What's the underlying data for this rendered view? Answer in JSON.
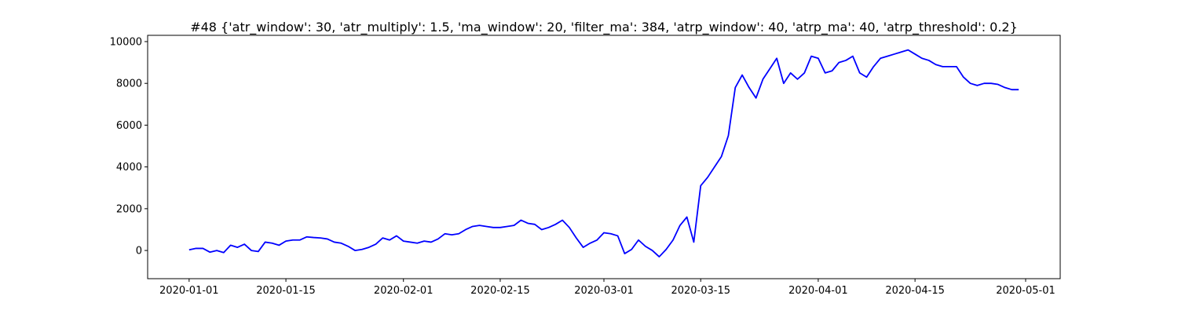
{
  "chart_data": {
    "type": "line",
    "title": "#48 {'atr_window': 30, 'atr_multiply': 1.5, 'ma_window': 20, 'filter_ma': 384, 'atrp_window': 40, 'atrp_ma': 40, 'atrp_threshold': 0.2}",
    "x": [
      "2020-01-01",
      "2020-01-02",
      "2020-01-03",
      "2020-01-04",
      "2020-01-05",
      "2020-01-06",
      "2020-01-07",
      "2020-01-08",
      "2020-01-09",
      "2020-01-10",
      "2020-01-11",
      "2020-01-12",
      "2020-01-13",
      "2020-01-14",
      "2020-01-15",
      "2020-01-16",
      "2020-01-17",
      "2020-01-18",
      "2020-01-19",
      "2020-01-20",
      "2020-01-21",
      "2020-01-22",
      "2020-01-23",
      "2020-01-24",
      "2020-01-25",
      "2020-01-26",
      "2020-01-27",
      "2020-01-28",
      "2020-01-29",
      "2020-01-30",
      "2020-01-31",
      "2020-02-01",
      "2020-02-02",
      "2020-02-03",
      "2020-02-04",
      "2020-02-05",
      "2020-02-06",
      "2020-02-07",
      "2020-02-08",
      "2020-02-09",
      "2020-02-10",
      "2020-02-11",
      "2020-02-12",
      "2020-02-13",
      "2020-02-14",
      "2020-02-15",
      "2020-02-16",
      "2020-02-17",
      "2020-02-18",
      "2020-02-19",
      "2020-02-20",
      "2020-02-21",
      "2020-02-22",
      "2020-02-23",
      "2020-02-24",
      "2020-02-25",
      "2020-02-26",
      "2020-02-27",
      "2020-02-28",
      "2020-02-29",
      "2020-03-01",
      "2020-03-02",
      "2020-03-03",
      "2020-03-04",
      "2020-03-05",
      "2020-03-06",
      "2020-03-07",
      "2020-03-08",
      "2020-03-09",
      "2020-03-10",
      "2020-03-11",
      "2020-03-12",
      "2020-03-13",
      "2020-03-14",
      "2020-03-15",
      "2020-03-16",
      "2020-03-17",
      "2020-03-18",
      "2020-03-19",
      "2020-03-20",
      "2020-03-21",
      "2020-03-22",
      "2020-03-23",
      "2020-03-24",
      "2020-03-25",
      "2020-03-26",
      "2020-03-27",
      "2020-03-28",
      "2020-03-29",
      "2020-03-30",
      "2020-03-31",
      "2020-04-01",
      "2020-04-02",
      "2020-04-03",
      "2020-04-04",
      "2020-04-05",
      "2020-04-06",
      "2020-04-07",
      "2020-04-08",
      "2020-04-09",
      "2020-04-10",
      "2020-04-11",
      "2020-04-12",
      "2020-04-13",
      "2020-04-14",
      "2020-04-15",
      "2020-04-16",
      "2020-04-17",
      "2020-04-18",
      "2020-04-19",
      "2020-04-20",
      "2020-04-21",
      "2020-04-22",
      "2020-04-23",
      "2020-04-24",
      "2020-04-25",
      "2020-04-26",
      "2020-04-27",
      "2020-04-28",
      "2020-04-29",
      "2020-04-30"
    ],
    "series": [
      {
        "color": "#0000ff",
        "values": [
          30,
          100,
          100,
          -80,
          0,
          -100,
          250,
          150,
          300,
          0,
          -50,
          400,
          350,
          250,
          450,
          500,
          500,
          650,
          620,
          600,
          550,
          400,
          350,
          200,
          0,
          50,
          150,
          300,
          600,
          500,
          700,
          450,
          400,
          350,
          450,
          400,
          550,
          800,
          750,
          800,
          1000,
          1150,
          1200,
          1150,
          1100,
          1100,
          1150,
          1200,
          1450,
          1300,
          1250,
          1000,
          1100,
          1250,
          1450,
          1100,
          600,
          150,
          350,
          500,
          850,
          800,
          700,
          -150,
          50,
          500,
          200,
          0,
          -300,
          50,
          500,
          1200,
          1600,
          400,
          3100,
          3500,
          4000,
          4500,
          5500,
          7800,
          8400,
          7800,
          7300,
          8200,
          8700,
          9200,
          8000,
          8500,
          8200,
          8500,
          9300,
          9200,
          8500,
          8600,
          9000,
          9100,
          9300,
          8500,
          8300,
          8800,
          9200,
          9300,
          9400,
          9500,
          9600,
          9400,
          9200,
          9100,
          8900,
          8800,
          8800,
          8800,
          8300,
          8000,
          7900,
          8000,
          8000,
          7950,
          7800,
          7700,
          7700
        ]
      }
    ],
    "xlim": [
      "2019-12-26",
      "2020-05-06"
    ],
    "xticks": [
      "2020-01-01",
      "2020-01-15",
      "2020-02-01",
      "2020-02-15",
      "2020-03-01",
      "2020-03-15",
      "2020-04-01",
      "2020-04-15",
      "2020-05-01"
    ],
    "ylim": [
      -1350,
      10300
    ],
    "yticks": [
      0,
      2000,
      4000,
      6000,
      8000,
      10000
    ]
  }
}
